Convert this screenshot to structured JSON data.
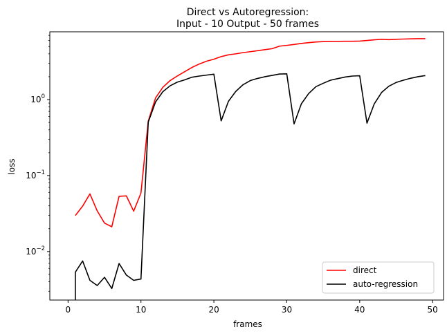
{
  "chart_data": {
    "type": "line",
    "title": "Direct vs Autoregression:",
    "subtitle": "Input - 10 Output - 50 frames",
    "xlabel": "frames",
    "ylabel": "loss",
    "xlim": [
      -2.5,
      51.5
    ],
    "ylim": [
      0.0023,
      7.8
    ],
    "yscale": "log",
    "x_ticks": [
      0,
      10,
      20,
      30,
      40,
      50
    ],
    "y_ticks": [
      {
        "value": 1,
        "base": "10",
        "exp": "0"
      },
      {
        "value": 0.1,
        "base": "10",
        "exp": "−1"
      },
      {
        "value": 0.01,
        "base": "10",
        "exp": "−2"
      }
    ],
    "legend_position": "lower right",
    "series": [
      {
        "name": "direct",
        "color": "#ff0000",
        "x": [
          1,
          2,
          3,
          4,
          5,
          6,
          7,
          8,
          9,
          10,
          11,
          12,
          13,
          14,
          15,
          16,
          17,
          18,
          19,
          20,
          21,
          22,
          23,
          24,
          25,
          26,
          27,
          28,
          29,
          30,
          31,
          32,
          33,
          34,
          35,
          36,
          37,
          38,
          39,
          40,
          41,
          42,
          43,
          44,
          45,
          46,
          47,
          48,
          49
        ],
        "y": [
          0.0298,
          0.0396,
          0.0574,
          0.0343,
          0.0237,
          0.0212,
          0.0534,
          0.054,
          0.034,
          0.059,
          0.52,
          1.05,
          1.45,
          1.78,
          2.05,
          2.33,
          2.65,
          2.94,
          3.2,
          3.4,
          3.68,
          3.88,
          4.0,
          4.15,
          4.27,
          4.4,
          4.54,
          4.68,
          5.05,
          5.17,
          5.31,
          5.48,
          5.62,
          5.73,
          5.8,
          5.84,
          5.84,
          5.85,
          5.86,
          5.89,
          6.0,
          6.12,
          6.22,
          6.16,
          6.22,
          6.26,
          6.3,
          6.33,
          6.33
        ]
      },
      {
        "name": "auto-regression",
        "color": "#000000",
        "x": [
          1,
          1,
          2,
          3,
          4,
          5,
          6,
          7,
          8,
          9,
          10,
          11,
          12,
          13,
          14,
          15,
          16,
          17,
          18,
          19,
          20,
          21,
          22,
          23,
          24,
          25,
          26,
          27,
          28,
          29,
          30,
          31,
          32,
          33,
          34,
          35,
          36,
          37,
          38,
          39,
          40,
          41,
          42,
          43,
          44,
          45,
          46,
          47,
          48,
          49
        ],
        "y": [
          0.0023,
          0.00535,
          0.00752,
          0.00418,
          0.00357,
          0.00458,
          0.00326,
          0.00696,
          0.0049,
          0.00418,
          0.00435,
          0.505,
          0.93,
          1.27,
          1.52,
          1.7,
          1.82,
          1.97,
          2.04,
          2.1,
          2.16,
          0.525,
          0.95,
          1.28,
          1.57,
          1.78,
          1.9,
          2.0,
          2.08,
          2.17,
          2.18,
          0.478,
          0.88,
          1.2,
          1.48,
          1.64,
          1.8,
          1.89,
          1.98,
          2.04,
          2.06,
          0.49,
          0.88,
          1.24,
          1.5,
          1.68,
          1.8,
          1.91,
          2.0,
          2.07
        ]
      }
    ]
  }
}
